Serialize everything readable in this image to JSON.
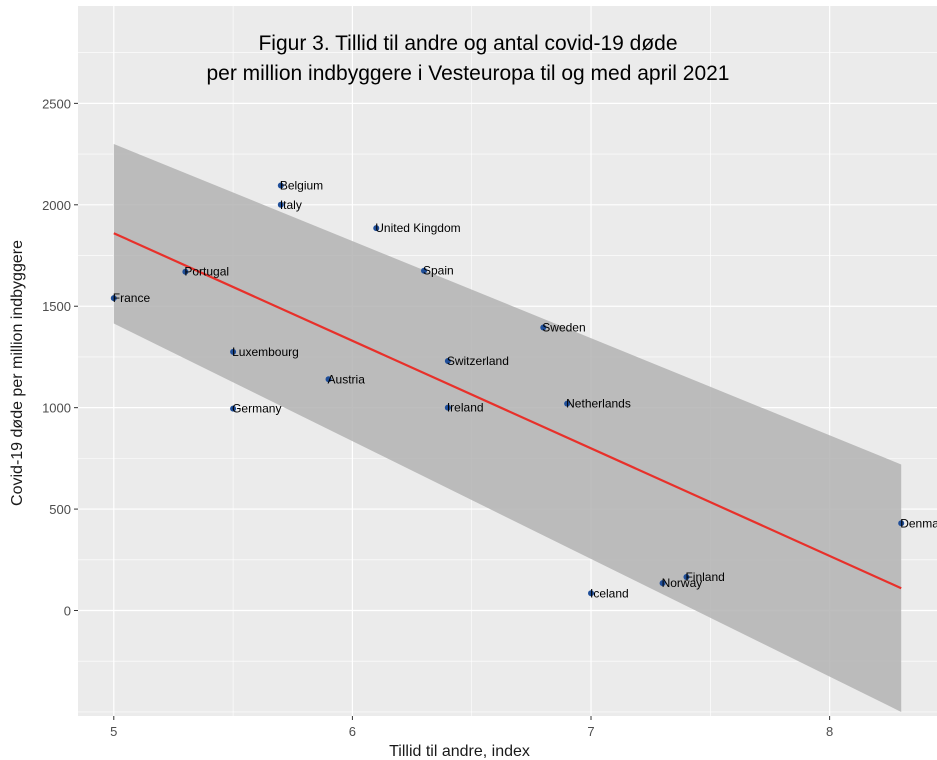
{
  "chart_data": {
    "type": "scatter",
    "title_lines": [
      "Figur 3. Tillid til andre  og antal covid-19 døde",
      "per million indbyggere i Vesteuropa til og med april 2021"
    ],
    "xlabel": "Tillid til andre, index",
    "ylabel": "Covid-19 døde per million indbyggere",
    "xlim": [
      4.85,
      8.45
    ],
    "ylim": [
      -520,
      2980
    ],
    "x_ticks": [
      5,
      6,
      7,
      8
    ],
    "y_ticks": [
      0,
      500,
      1000,
      1500,
      2000,
      2500
    ],
    "points": [
      {
        "label": "France",
        "x": 5.0,
        "y": 1540
      },
      {
        "label": "Portugal",
        "x": 5.3,
        "y": 1670
      },
      {
        "label": "Luxembourg",
        "x": 5.5,
        "y": 1275
      },
      {
        "label": "Germany",
        "x": 5.5,
        "y": 995
      },
      {
        "label": "Belgium",
        "x": 5.7,
        "y": 2095
      },
      {
        "label": "Italy",
        "x": 5.7,
        "y": 2000
      },
      {
        "label": "Austria",
        "x": 5.9,
        "y": 1140
      },
      {
        "label": "United Kingdom",
        "x": 6.1,
        "y": 1885
      },
      {
        "label": "Spain",
        "x": 6.3,
        "y": 1675
      },
      {
        "label": "Switzerland",
        "x": 6.4,
        "y": 1230
      },
      {
        "label": "Ireland",
        "x": 6.4,
        "y": 1000
      },
      {
        "label": "Sweden",
        "x": 6.8,
        "y": 1395
      },
      {
        "label": "Netherlands",
        "x": 6.9,
        "y": 1020
      },
      {
        "label": "Iceland",
        "x": 7.0,
        "y": 85
      },
      {
        "label": "Norway",
        "x": 7.3,
        "y": 135
      },
      {
        "label": "Finland",
        "x": 7.4,
        "y": 165
      },
      {
        "label": "Denmark",
        "x": 8.3,
        "y": 430
      }
    ],
    "trend_line": {
      "x": [
        5.0,
        8.3
      ],
      "y": [
        1860,
        110
      ]
    },
    "confidence_band": {
      "x": [
        5.0,
        8.3
      ],
      "upper": [
        2300,
        720
      ],
      "lower": [
        1415,
        -500
      ]
    },
    "colors": {
      "panel_background": "#ebebeb",
      "grid": "#ffffff",
      "point": "#1f4e99",
      "trend_line": "#e8302a",
      "band": "#b3b3b3"
    },
    "grid": true
  }
}
